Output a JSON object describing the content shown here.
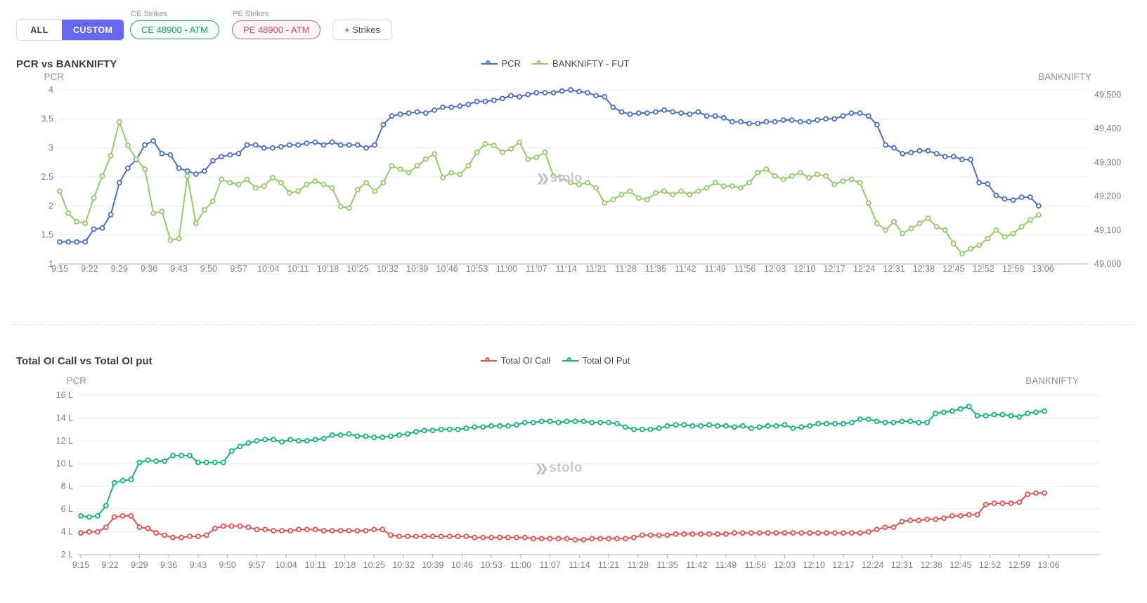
{
  "toolbar": {
    "all_label": "ALL",
    "custom_label": "CUSTOM",
    "ce_strikes_label": "CE Strikes",
    "ce_strike_value": "CE 48900 - ATM",
    "pe_strikes_label": "PE Strikes",
    "pe_strike_value": "PE 48900 - ATM",
    "add_strikes_label": "+ Strikes"
  },
  "watermark": "stolo",
  "colors": {
    "accent_indigo": "#6468f1",
    "pcr_blue": "#4a6dd0",
    "banknifty_green": "#93cd67",
    "oi_call_red": "#ee4d4d",
    "oi_put_teal": "#0db87f",
    "grid": "#e8ebf3",
    "axis": "#a9aeb8",
    "tick_text": "#7b818b"
  },
  "chart_data": [
    {
      "type": "line",
      "title": "PCR vs BANKNIFTY",
      "legend_position": "top-center",
      "grid": true,
      "left_axis": {
        "title": "PCR",
        "min": 1,
        "max": 4,
        "step": 0.5,
        "tick_labels": [
          "4",
          "3.5",
          "3",
          "2.5",
          "2",
          "1.5",
          "1"
        ]
      },
      "right_axis": {
        "title": "BANKNIFTY",
        "min": 49000,
        "max": 49500,
        "tick_labels": [
          "49,500",
          "49,400",
          "49,300",
          "49,200",
          "49,100",
          "49,000"
        ]
      },
      "x": {
        "start": "9:15",
        "end": "13:06",
        "total_min": 231,
        "label_interval_min": 7,
        "point_interval_min": 2,
        "tick_labels": [
          "9:15",
          "9:22",
          "9:29",
          "9:36",
          "9:43",
          "9:50",
          "9:57",
          "10:04",
          "10:11",
          "10:18",
          "10:25",
          "10:32",
          "10:39",
          "10:46",
          "10:53",
          "11:00",
          "11:07",
          "11:14",
          "11:21",
          "11:28",
          "11:35",
          "11:42",
          "11:49",
          "11:56",
          "12:03",
          "12:10",
          "12:17",
          "12:24",
          "12:31",
          "12:38",
          "12:45",
          "12:52",
          "12:59",
          "13:06"
        ]
      },
      "series": [
        {
          "name": "PCR",
          "color": "#4a6dd0",
          "axis": "left",
          "values": [
            1.38,
            1.38,
            1.38,
            1.38,
            1.6,
            1.62,
            1.85,
            2.4,
            2.65,
            2.8,
            3.05,
            3.12,
            2.9,
            2.88,
            2.65,
            2.6,
            2.55,
            2.6,
            2.78,
            2.85,
            2.88,
            2.9,
            3.05,
            3.05,
            3.0,
            3.0,
            3.02,
            3.05,
            3.05,
            3.08,
            3.1,
            3.05,
            3.1,
            3.05,
            3.05,
            3.05,
            3.0,
            3.05,
            3.4,
            3.55,
            3.58,
            3.6,
            3.62,
            3.6,
            3.65,
            3.7,
            3.7,
            3.72,
            3.75,
            3.8,
            3.8,
            3.82,
            3.85,
            3.9,
            3.88,
            3.92,
            3.95,
            3.95,
            3.95,
            3.98,
            4.0,
            3.97,
            3.95,
            3.9,
            3.88,
            3.7,
            3.62,
            3.58,
            3.6,
            3.6,
            3.62,
            3.65,
            3.62,
            3.6,
            3.58,
            3.62,
            3.55,
            3.55,
            3.52,
            3.45,
            3.45,
            3.42,
            3.42,
            3.45,
            3.45,
            3.48,
            3.48,
            3.45,
            3.45,
            3.48,
            3.5,
            3.5,
            3.55,
            3.6,
            3.6,
            3.55,
            3.4,
            3.05,
            3.0,
            2.9,
            2.92,
            2.95,
            2.95,
            2.9,
            2.85,
            2.85,
            2.8,
            2.8,
            2.4,
            2.38,
            2.18,
            2.12,
            2.1,
            2.15,
            2.15,
            2.0
          ]
        },
        {
          "name": "BANKNIFTY - FUT",
          "color": "#93cd67",
          "axis": "right",
          "values": [
            49215,
            49150,
            49125,
            49120,
            49195,
            49260,
            49320,
            49420,
            49350,
            49310,
            49280,
            49150,
            49155,
            49070,
            49075,
            49260,
            49120,
            49160,
            49185,
            49250,
            49240,
            49235,
            49250,
            49225,
            49230,
            49255,
            49240,
            49210,
            49215,
            49235,
            49245,
            49235,
            49225,
            49170,
            49165,
            49220,
            49240,
            49215,
            49240,
            49290,
            49280,
            49270,
            49290,
            49310,
            49325,
            49255,
            49270,
            49265,
            49290,
            49330,
            49355,
            49350,
            49330,
            49340,
            49360,
            49310,
            49315,
            49330,
            49260,
            49255,
            49240,
            49235,
            49240,
            49225,
            49180,
            49190,
            49205,
            49215,
            49195,
            49190,
            49210,
            49215,
            49205,
            49215,
            49205,
            49215,
            49225,
            49240,
            49230,
            49230,
            49225,
            49240,
            49270,
            49280,
            49260,
            49250,
            49260,
            49270,
            49255,
            49265,
            49260,
            49235,
            49245,
            49250,
            49240,
            49180,
            49120,
            49100,
            49125,
            49090,
            49105,
            49120,
            49135,
            49110,
            49100,
            49060,
            49030,
            49045,
            49055,
            49075,
            49100,
            49080,
            49090,
            49110,
            49130,
            49145
          ]
        }
      ]
    },
    {
      "type": "line",
      "title": "Total OI Call vs Total OI put",
      "legend_position": "top-center",
      "grid": true,
      "left_axis": {
        "title": "PCR",
        "min": 2,
        "max": 16,
        "step": 2,
        "unit": "L (lakh)",
        "tick_labels": [
          "16 L",
          "14 L",
          "12 L",
          "10 L",
          "8 L",
          "6 L",
          "4 L",
          "2 L"
        ]
      },
      "right_axis": {
        "title": "BANKNIFTY",
        "tick_labels": []
      },
      "x": {
        "start": "9:15",
        "end": "13:06",
        "total_min": 231,
        "label_interval_min": 7,
        "point_interval_min": 2,
        "tick_labels": [
          "9:15",
          "9:22",
          "9:29",
          "9:36",
          "9:43",
          "9:50",
          "9:57",
          "10:04",
          "10:11",
          "10:18",
          "10:25",
          "10:32",
          "10:39",
          "10:46",
          "10:53",
          "11:00",
          "11:07",
          "11:14",
          "11:21",
          "11:28",
          "11:35",
          "11:42",
          "11:49",
          "11:56",
          "12:03",
          "12:10",
          "12:17",
          "12:24",
          "12:31",
          "12:38",
          "12:45",
          "12:52",
          "12:59",
          "13:06"
        ]
      },
      "series": [
        {
          "name": "Total OI Call",
          "color": "#ee4d4d",
          "axis": "left",
          "values": [
            3.9,
            4.0,
            4.0,
            4.4,
            5.3,
            5.4,
            5.4,
            4.4,
            4.3,
            3.9,
            3.7,
            3.5,
            3.5,
            3.6,
            3.6,
            3.7,
            4.3,
            4.5,
            4.5,
            4.5,
            4.4,
            4.2,
            4.2,
            4.1,
            4.1,
            4.1,
            4.2,
            4.2,
            4.2,
            4.1,
            4.1,
            4.1,
            4.1,
            4.1,
            4.1,
            4.2,
            4.2,
            3.7,
            3.6,
            3.6,
            3.6,
            3.6,
            3.6,
            3.6,
            3.6,
            3.6,
            3.6,
            3.5,
            3.5,
            3.5,
            3.5,
            3.5,
            3.5,
            3.5,
            3.4,
            3.4,
            3.4,
            3.4,
            3.4,
            3.3,
            3.3,
            3.4,
            3.4,
            3.4,
            3.4,
            3.4,
            3.5,
            3.7,
            3.7,
            3.7,
            3.7,
            3.8,
            3.8,
            3.8,
            3.8,
            3.8,
            3.8,
            3.8,
            3.9,
            3.9,
            3.9,
            3.9,
            3.9,
            3.9,
            3.9,
            3.9,
            3.9,
            3.9,
            3.9,
            3.9,
            3.9,
            3.9,
            3.9,
            3.9,
            4.0,
            4.2,
            4.4,
            4.4,
            4.9,
            5.0,
            5.0,
            5.1,
            5.1,
            5.2,
            5.4,
            5.4,
            5.5,
            5.5,
            6.4,
            6.5,
            6.5,
            6.5,
            6.6,
            7.3,
            7.4,
            7.4
          ]
        },
        {
          "name": "Total OI Put",
          "color": "#0db87f",
          "axis": "left",
          "values": [
            5.4,
            5.3,
            5.4,
            6.3,
            8.3,
            8.5,
            8.6,
            10.1,
            10.3,
            10.2,
            10.2,
            10.7,
            10.7,
            10.7,
            10.1,
            10.1,
            10.1,
            10.1,
            11.1,
            11.5,
            11.8,
            12.0,
            12.1,
            12.1,
            11.9,
            12.1,
            12.0,
            12.0,
            12.1,
            12.2,
            12.5,
            12.5,
            12.6,
            12.4,
            12.4,
            12.3,
            12.3,
            12.4,
            12.5,
            12.6,
            12.8,
            12.9,
            12.9,
            13.0,
            13.0,
            13.0,
            13.1,
            13.2,
            13.2,
            13.3,
            13.3,
            13.3,
            13.4,
            13.6,
            13.6,
            13.7,
            13.7,
            13.6,
            13.7,
            13.7,
            13.7,
            13.6,
            13.6,
            13.6,
            13.5,
            13.2,
            13.0,
            13.0,
            13.0,
            13.1,
            13.3,
            13.4,
            13.4,
            13.3,
            13.3,
            13.4,
            13.3,
            13.3,
            13.2,
            13.3,
            13.1,
            13.2,
            13.3,
            13.3,
            13.4,
            13.1,
            13.2,
            13.3,
            13.5,
            13.5,
            13.5,
            13.5,
            13.6,
            13.9,
            13.9,
            13.7,
            13.6,
            13.6,
            13.7,
            13.7,
            13.6,
            13.6,
            14.4,
            14.5,
            14.6,
            14.8,
            15.0,
            14.2,
            14.2,
            14.3,
            14.3,
            14.2,
            14.1,
            14.4,
            14.5,
            14.6
          ]
        }
      ]
    }
  ]
}
